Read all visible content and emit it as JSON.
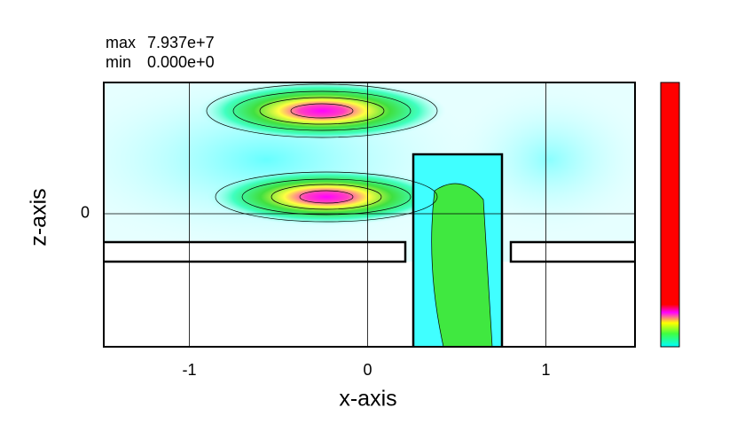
{
  "chart_data": {
    "type": "field",
    "max_label": "max",
    "max_value": "7.937e+7",
    "min_label": "min",
    "min_value": "0.000e+0",
    "xlabel": "x-axis",
    "ylabel": "z-axis",
    "xlim": [
      -1.48,
      1.5
    ],
    "ylim": [
      -0.74,
      0.73
    ],
    "xticks": [
      -1,
      0,
      1
    ],
    "yticks": [
      0
    ],
    "grid": true
  }
}
